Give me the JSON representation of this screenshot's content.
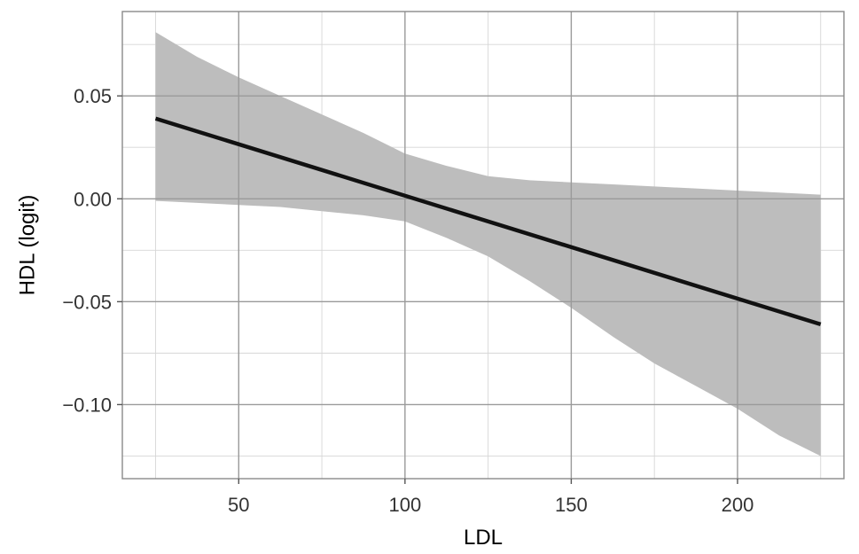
{
  "chart_data": {
    "type": "line",
    "xlabel": "LDL",
    "ylabel": "HDL (logit)",
    "xlim": [
      15,
      232
    ],
    "ylim": [
      -0.136,
      0.091
    ],
    "x_ticks": [
      50,
      100,
      150,
      200
    ],
    "x_tick_labels": [
      "50",
      "100",
      "150",
      "200"
    ],
    "x_minor_ticks": [
      25,
      75,
      125,
      175,
      225
    ],
    "y_ticks": [
      0.05,
      0.0,
      -0.05,
      -0.1
    ],
    "y_tick_labels": [
      "0.05",
      "0.00",
      "−0.05",
      "−0.10"
    ],
    "y_minor_ticks": [
      0.075,
      0.025,
      -0.025,
      -0.075,
      -0.125
    ],
    "grid": true,
    "legend": "none",
    "series": [
      {
        "x": [
          25,
          225
        ],
        "y": [
          0.039,
          -0.061
        ],
        "color": "#111111"
      }
    ],
    "ribbon": {
      "color": "#bdbdbd",
      "x": [
        25,
        37.5,
        50,
        62.5,
        75,
        87.5,
        100,
        112.5,
        125,
        137.5,
        150,
        162.5,
        175,
        187.5,
        200,
        212.5,
        225
      ],
      "upper": [
        0.081,
        0.069,
        0.059,
        0.05,
        0.041,
        0.032,
        0.022,
        0.016,
        0.011,
        0.009,
        0.008,
        0.007,
        0.006,
        0.005,
        0.004,
        0.003,
        0.002
      ],
      "lower": [
        -0.001,
        -0.002,
        -0.003,
        -0.004,
        -0.006,
        -0.008,
        -0.011,
        -0.019,
        -0.028,
        -0.04,
        -0.053,
        -0.067,
        -0.08,
        -0.091,
        -0.102,
        -0.115,
        -0.125
      ]
    }
  }
}
